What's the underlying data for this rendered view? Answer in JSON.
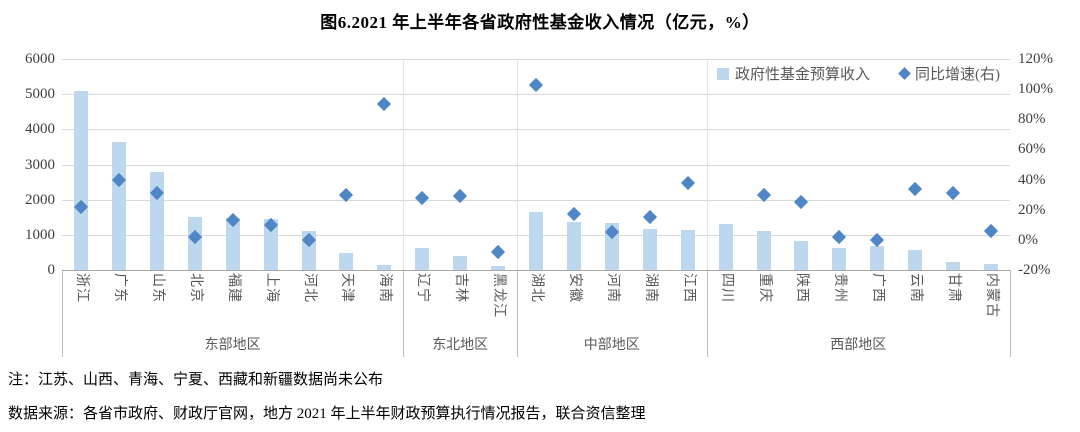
{
  "chart_data": {
    "type": "bar+scatter",
    "title": "图6.2021 年上半年各省政府性基金收入情况（亿元，%）",
    "categories": [
      "浙江",
      "广东",
      "山东",
      "北京",
      "福建",
      "上海",
      "河北",
      "天津",
      "海南",
      "辽宁",
      "吉林",
      "黑龙江",
      "湖北",
      "安徽",
      "河南",
      "湖南",
      "江西",
      "四川",
      "重庆",
      "陕西",
      "贵州",
      "广西",
      "云南",
      "甘肃",
      "内蒙古"
    ],
    "groups": [
      {
        "label": "东部地区",
        "count": 9
      },
      {
        "label": "东北地区",
        "count": 3
      },
      {
        "label": "中部地区",
        "count": 5
      },
      {
        "label": "西部地区",
        "count": 8
      }
    ],
    "series": [
      {
        "name": "政府性基金预算收入",
        "type": "bar",
        "axis": "left",
        "color": "#bdd7ee",
        "values": [
          5100,
          3630,
          2780,
          1500,
          1480,
          1450,
          1120,
          480,
          150,
          620,
          410,
          120,
          1640,
          1360,
          1330,
          1160,
          1140,
          1310,
          1110,
          840,
          630,
          680,
          580,
          240,
          180
        ]
      },
      {
        "name": "同比增速(右)",
        "type": "scatter",
        "marker": "diamond",
        "axis": "right",
        "color": "#4f86c6",
        "values": [
          22,
          40,
          31,
          2,
          13,
          10,
          0,
          30,
          90,
          28,
          29,
          -8,
          103,
          17,
          5,
          15,
          38,
          null,
          30,
          25,
          2,
          0,
          34,
          31,
          6
        ]
      }
    ],
    "left_axis": {
      "min": 0,
      "max": 6000,
      "ticks": [
        "6000",
        "5000",
        "4000",
        "3000",
        "2000",
        "1000",
        "0"
      ]
    },
    "right_axis": {
      "min": -20,
      "max": 120,
      "ticks": [
        "120%",
        "100%",
        "80%",
        "60%",
        "40%",
        "20%",
        "0%",
        "-20%"
      ]
    },
    "grid": true,
    "legend_position": "top-right-inside"
  },
  "notes": [
    "注：江苏、山西、青海、宁夏、西藏和新疆数据尚未公布",
    "数据来源：各省市政府、财政厅官网，地方 2021 年上半年财政预算执行情况报告，联合资信整理"
  ]
}
